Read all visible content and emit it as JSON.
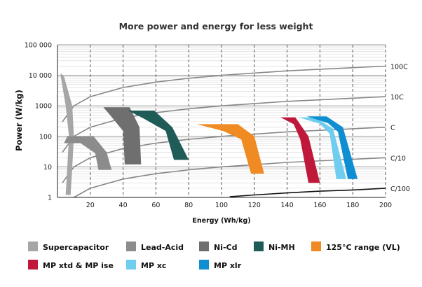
{
  "chart_data": {
    "type": "line",
    "title": "More power and energy for less weight",
    "xlabel": "Energy (Wh/kg)",
    "ylabel": "Power (W/kg)",
    "x_scale": "linear",
    "y_scale": "log",
    "xlim": [
      0,
      200
    ],
    "ylim": [
      1,
      100000
    ],
    "x_ticks": [
      "20",
      "40",
      "60",
      "80",
      "100",
      "120",
      "140",
      "160",
      "180",
      "200"
    ],
    "y_ticks": [
      "1",
      "10",
      "100",
      "1000",
      "10 000",
      "100 000"
    ],
    "grid": "vertical dashed, horizontal minor log",
    "legend_position": "bottom",
    "rate_lines": [
      {
        "name": "100C",
        "color": "#888888",
        "x": [
          3,
          10,
          20,
          40,
          60,
          80,
          100,
          140,
          200
        ],
        "y": [
          300,
          1000,
          2000,
          4000,
          6000,
          8000,
          10000,
          14000,
          20000
        ]
      },
      {
        "name": "10C",
        "color": "#888888",
        "x": [
          3,
          10,
          20,
          40,
          60,
          80,
          100,
          140,
          200
        ],
        "y": [
          30,
          100,
          200,
          400,
          600,
          800,
          1000,
          1400,
          2000
        ]
      },
      {
        "name": "C",
        "color": "#888888",
        "x": [
          3,
          10,
          20,
          40,
          60,
          80,
          100,
          140,
          200
        ],
        "y": [
          3,
          10,
          20,
          40,
          60,
          80,
          100,
          140,
          200
        ]
      },
      {
        "name": "C/10",
        "color": "#888888",
        "x": [
          10,
          20,
          40,
          60,
          80,
          100,
          140,
          200
        ],
        "y": [
          1,
          2,
          4,
          6,
          8,
          10,
          14,
          20
        ]
      },
      {
        "name": "C/100",
        "color": "#111111",
        "x": [
          105,
          120,
          140,
          160,
          180,
          200
        ],
        "y": [
          1.05,
          1.2,
          1.4,
          1.6,
          1.75,
          2
        ]
      }
    ],
    "regions": [
      {
        "name": "Supercapacitor",
        "color": "#a6a6a6",
        "points": [
          [
            2,
            12000
          ],
          [
            4,
            9000
          ],
          [
            9,
            1000
          ],
          [
            10,
            100
          ],
          [
            9,
            10
          ],
          [
            8,
            1.2
          ],
          [
            5,
            1.2
          ],
          [
            6,
            10
          ],
          [
            7,
            100
          ],
          [
            5,
            1000
          ],
          [
            2,
            9000
          ]
        ]
      },
      {
        "name": "Lead-Acid",
        "color": "#8c8c8c",
        "points": [
          [
            6,
            100
          ],
          [
            22,
            100
          ],
          [
            30,
            30
          ],
          [
            33,
            8
          ],
          [
            25,
            8
          ],
          [
            23,
            28
          ],
          [
            14,
            60
          ],
          [
            4,
            60
          ]
        ]
      },
      {
        "name": "Ni-Cd",
        "color": "#6f6f6f",
        "points": [
          [
            28,
            900
          ],
          [
            44,
            900
          ],
          [
            50,
            200
          ],
          [
            51,
            12
          ],
          [
            41,
            12
          ],
          [
            40,
            150
          ],
          [
            32,
            500
          ]
        ]
      },
      {
        "name": "Ni-MH",
        "color": "#1f5b57",
        "points": [
          [
            43,
            700
          ],
          [
            59,
            700
          ],
          [
            70,
            200
          ],
          [
            80,
            17
          ],
          [
            71,
            17
          ],
          [
            66,
            150
          ],
          [
            52,
            400
          ]
        ]
      },
      {
        "name": "125°C range (VL)",
        "color": "#f08a22",
        "points": [
          [
            85,
            250
          ],
          [
            110,
            250
          ],
          [
            120,
            100
          ],
          [
            126,
            6
          ],
          [
            118,
            6
          ],
          [
            112,
            80
          ],
          [
            101,
            150
          ]
        ]
      },
      {
        "name": "MP xtd & MP ise",
        "color": "#c0183a",
        "points": [
          [
            136,
            420
          ],
          [
            145,
            420
          ],
          [
            153,
            100
          ],
          [
            160,
            3
          ],
          [
            153,
            3
          ],
          [
            148,
            80
          ],
          [
            144,
            250
          ]
        ]
      },
      {
        "name": "MP xc",
        "color": "#6fcdf0",
        "points": [
          [
            147,
            420
          ],
          [
            157,
            420
          ],
          [
            168,
            180
          ],
          [
            176,
            4
          ],
          [
            170,
            4
          ],
          [
            166,
            120
          ],
          [
            160,
            260
          ]
        ]
      },
      {
        "name": "MP xlr",
        "color": "#0f8fd2",
        "points": [
          [
            152,
            450
          ],
          [
            164,
            450
          ],
          [
            174,
            200
          ],
          [
            183,
            4
          ],
          [
            177,
            4
          ],
          [
            171,
            140
          ],
          [
            165,
            270
          ]
        ]
      }
    ]
  },
  "legend": [
    {
      "label": "Supercapacitor",
      "color": "#a6a6a6"
    },
    {
      "label": "Lead-Acid",
      "color": "#8c8c8c"
    },
    {
      "label": "Ni-Cd",
      "color": "#6f6f6f"
    },
    {
      "label": "Ni-MH",
      "color": "#1f5b57"
    },
    {
      "label": "125°C range (VL)",
      "color": "#f08a22"
    },
    {
      "label": "MP xtd & MP ise",
      "color": "#c0183a"
    },
    {
      "label": "MP xc",
      "color": "#6fcdf0"
    },
    {
      "label": "MP xlr",
      "color": "#0f8fd2"
    }
  ]
}
